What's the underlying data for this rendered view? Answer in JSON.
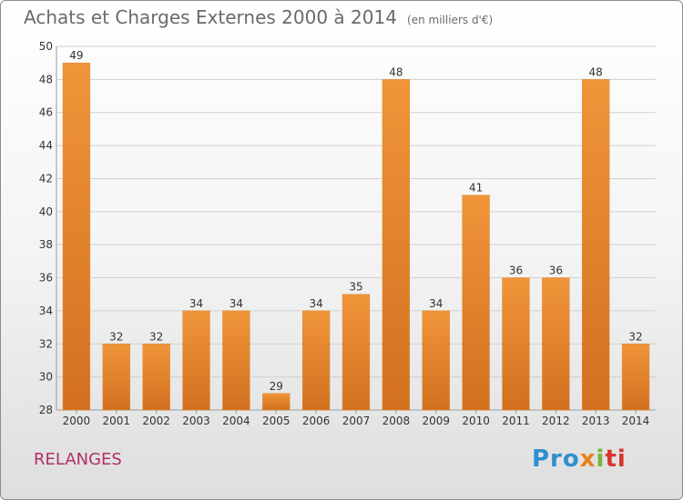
{
  "chart_data": {
    "type": "bar",
    "title": "Achats et Charges Externes 2000 à 2014",
    "subtitle": "(en milliers d'€)",
    "categories": [
      "2000",
      "2001",
      "2002",
      "2003",
      "2004",
      "2005",
      "2006",
      "2007",
      "2008",
      "2009",
      "2010",
      "2011",
      "2012",
      "2013",
      "2014"
    ],
    "values": [
      49,
      32,
      32,
      34,
      34,
      29,
      34,
      35,
      48,
      34,
      41,
      36,
      36,
      48,
      32
    ],
    "ylim": [
      28,
      50
    ],
    "yticks": [
      28,
      30,
      32,
      34,
      36,
      38,
      40,
      42,
      44,
      46,
      48,
      50
    ],
    "grid": true,
    "bar_color": "#f0953a",
    "bar_color_dark": "#d27020"
  },
  "footer": {
    "commune": "RELANGES",
    "logo": [
      "Pro",
      "x",
      "i",
      "ti"
    ]
  }
}
